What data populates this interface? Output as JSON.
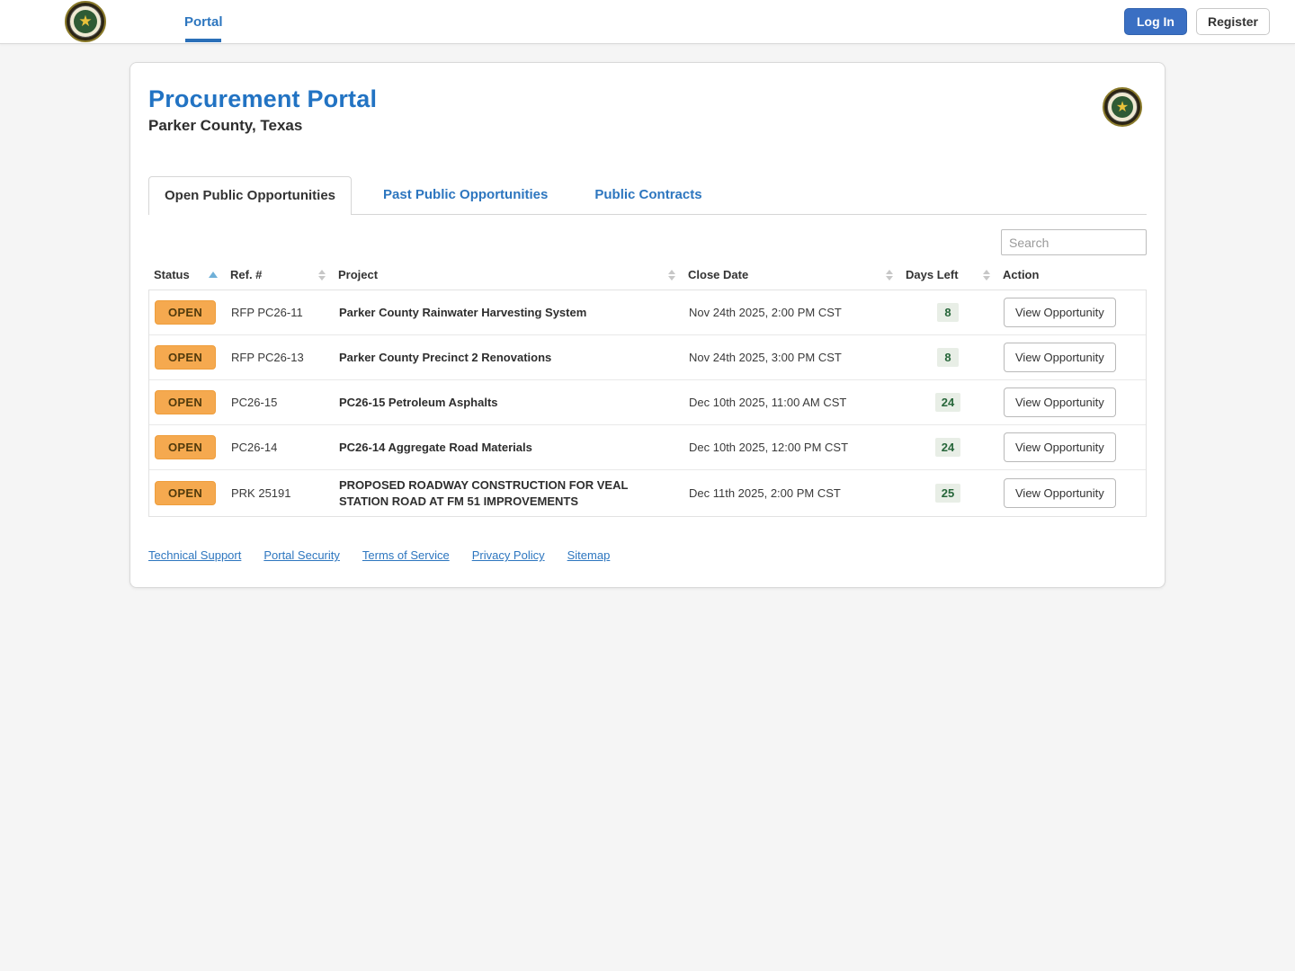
{
  "navbar": {
    "nav_portal_label": "Portal",
    "login_label": "Log In",
    "register_label": "Register",
    "seal_icon": "county-seal-star"
  },
  "header": {
    "title": "Procurement Portal",
    "subtitle": "Parker County, Texas"
  },
  "tabs": [
    {
      "label": "Open Public Opportunities",
      "active": true
    },
    {
      "label": "Past Public Opportunities",
      "active": false
    },
    {
      "label": "Public Contracts",
      "active": false
    }
  ],
  "search": {
    "placeholder": "Search"
  },
  "table": {
    "columns": [
      "Status",
      "Ref. #",
      "Project",
      "Close Date",
      "Days Left",
      "Action"
    ],
    "sort": {
      "column": "Status",
      "direction": "asc"
    },
    "rows": [
      {
        "status": "OPEN",
        "ref": "RFP PC26-11",
        "project": "Parker County Rainwater Harvesting System",
        "close_date": "Nov 24th 2025, 2:00 PM CST",
        "days_left": "8",
        "action": "View Opportunity"
      },
      {
        "status": "OPEN",
        "ref": "RFP PC26-13",
        "project": "Parker County Precinct 2 Renovations",
        "close_date": "Nov 24th 2025, 3:00 PM CST",
        "days_left": "8",
        "action": "View Opportunity"
      },
      {
        "status": "OPEN",
        "ref": "PC26-15",
        "project": "PC26-15 Petroleum Asphalts",
        "close_date": "Dec 10th 2025, 11:00 AM CST",
        "days_left": "24",
        "action": "View Opportunity"
      },
      {
        "status": "OPEN",
        "ref": "PC26-14",
        "project": "PC26-14 Aggregate Road Materials",
        "close_date": "Dec 10th 2025, 12:00 PM CST",
        "days_left": "24",
        "action": "View Opportunity"
      },
      {
        "status": "OPEN",
        "ref": "PRK 25191",
        "project": "PROPOSED ROADWAY CONSTRUCTION FOR VEAL STATION ROAD AT FM 51 IMPROVEMENTS",
        "close_date": "Dec 11th 2025, 2:00 PM CST",
        "days_left": "25",
        "action": "View Opportunity"
      }
    ]
  },
  "footer": {
    "links": [
      "Technical Support",
      "Portal Security",
      "Terms of Service",
      "Privacy Policy",
      "Sitemap"
    ]
  },
  "colors": {
    "accent_blue": "#2273c3",
    "link_blue": "#2d76bf",
    "open_badge_bg": "#f5a94f",
    "days_badge_bg": "#e8eee6",
    "days_badge_text": "#27663a",
    "login_button_bg": "#3a6fc3"
  }
}
